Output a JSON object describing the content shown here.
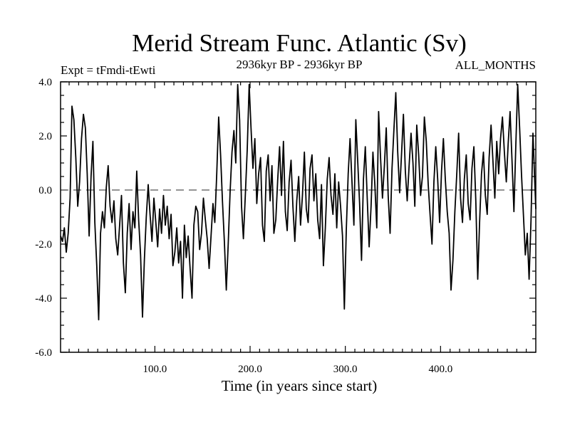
{
  "chart_data": {
    "type": "line",
    "title": "Merid Stream Func. Atlantic (Sv)",
    "subtitle_left": "Expt = tFmdi-tEwti",
    "subtitle_center": "2936kyr BP - 2936kyr BP",
    "subtitle_right": "ALL_MONTHS",
    "xlabel": "Time (in years since start)",
    "ylabel": "",
    "xlim": [
      1,
      500
    ],
    "ylim": [
      -6,
      4
    ],
    "x_ticks": [
      100,
      200,
      300,
      400
    ],
    "x_tick_labels": [
      "100.0",
      "200.0",
      "300.0",
      "400.0"
    ],
    "y_ticks": [
      -6,
      -4,
      -2,
      0,
      2,
      4
    ],
    "y_tick_labels": [
      "-6.0",
      "-4.0",
      "-2.0",
      "0.0",
      "2.0",
      "4.0"
    ],
    "reference_line": 0,
    "grid": false,
    "series": [
      {
        "name": "Merid Stream Func. Atlantic",
        "points": [
          [
            1,
            -1.7
          ],
          [
            3,
            -1.9
          ],
          [
            5,
            -1.4
          ],
          [
            7,
            -2.3
          ],
          [
            9,
            -1.6
          ],
          [
            11,
            -0.3
          ],
          [
            13,
            3.1
          ],
          [
            15,
            2.6
          ],
          [
            17,
            1.2
          ],
          [
            19,
            -0.6
          ],
          [
            21,
            0.3
          ],
          [
            23,
            1.9
          ],
          [
            25,
            2.8
          ],
          [
            27,
            2.3
          ],
          [
            29,
            0.6
          ],
          [
            31,
            -1.7
          ],
          [
            33,
            0.5
          ],
          [
            35,
            1.8
          ],
          [
            37,
            -1.2
          ],
          [
            39,
            -2.8
          ],
          [
            41,
            -4.8
          ],
          [
            43,
            -1.6
          ],
          [
            45,
            -0.8
          ],
          [
            47,
            -1.4
          ],
          [
            49,
            0.1
          ],
          [
            51,
            0.9
          ],
          [
            53,
            -0.6
          ],
          [
            55,
            -1.2
          ],
          [
            57,
            -0.4
          ],
          [
            59,
            -1.8
          ],
          [
            61,
            -2.4
          ],
          [
            63,
            -1.3
          ],
          [
            65,
            -0.2
          ],
          [
            67,
            -2.7
          ],
          [
            69,
            -3.8
          ],
          [
            71,
            -1.6
          ],
          [
            73,
            -0.5
          ],
          [
            75,
            -2.2
          ],
          [
            77,
            -0.8
          ],
          [
            79,
            -1.4
          ],
          [
            81,
            0.7
          ],
          [
            83,
            -1.1
          ],
          [
            85,
            -2.4
          ],
          [
            87,
            -4.7
          ],
          [
            89,
            -2.6
          ],
          [
            91,
            -1.0
          ],
          [
            93,
            0.2
          ],
          [
            95,
            -0.9
          ],
          [
            97,
            -1.9
          ],
          [
            99,
            -0.3
          ],
          [
            101,
            -1.2
          ],
          [
            103,
            -2.1
          ],
          [
            105,
            -0.7
          ],
          [
            107,
            -1.6
          ],
          [
            109,
            -0.2
          ],
          [
            111,
            -1.3
          ],
          [
            113,
            -0.6
          ],
          [
            115,
            -1.8
          ],
          [
            117,
            -0.9
          ],
          [
            119,
            -2.8
          ],
          [
            121,
            -2.3
          ],
          [
            123,
            -1.4
          ],
          [
            125,
            -2.7
          ],
          [
            127,
            -1.9
          ],
          [
            129,
            -4.0
          ],
          [
            131,
            -1.3
          ],
          [
            133,
            -2.5
          ],
          [
            135,
            -1.7
          ],
          [
            137,
            -2.9
          ],
          [
            139,
            -4.0
          ],
          [
            141,
            -1.3
          ],
          [
            143,
            -0.6
          ],
          [
            145,
            -0.8
          ],
          [
            147,
            -2.2
          ],
          [
            149,
            -1.6
          ],
          [
            151,
            -0.3
          ],
          [
            153,
            -1.1
          ],
          [
            155,
            -1.8
          ],
          [
            157,
            -2.9
          ],
          [
            159,
            -1.7
          ],
          [
            161,
            -0.5
          ],
          [
            163,
            -1.2
          ],
          [
            165,
            0.6
          ],
          [
            167,
            2.7
          ],
          [
            169,
            1.3
          ],
          [
            171,
            -0.4
          ],
          [
            173,
            -1.9
          ],
          [
            175,
            -3.7
          ],
          [
            177,
            -2.0
          ],
          [
            179,
            -0.1
          ],
          [
            181,
            1.4
          ],
          [
            183,
            2.2
          ],
          [
            185,
            1.0
          ],
          [
            187,
            3.9
          ],
          [
            189,
            2.6
          ],
          [
            191,
            -0.6
          ],
          [
            193,
            -1.8
          ],
          [
            195,
            -0.2
          ],
          [
            197,
            1.5
          ],
          [
            199,
            3.9
          ],
          [
            201,
            2.3
          ],
          [
            203,
            0.8
          ],
          [
            205,
            1.9
          ],
          [
            207,
            -0.5
          ],
          [
            209,
            0.6
          ],
          [
            211,
            1.2
          ],
          [
            213,
            -1.3
          ],
          [
            215,
            -1.9
          ],
          [
            217,
            0.7
          ],
          [
            219,
            1.3
          ],
          [
            221,
            -0.4
          ],
          [
            223,
            0.9
          ],
          [
            225,
            -1.6
          ],
          [
            227,
            -1.1
          ],
          [
            229,
            0.4
          ],
          [
            231,
            1.6
          ],
          [
            233,
            -0.2
          ],
          [
            235,
            1.8
          ],
          [
            237,
            -0.8
          ],
          [
            239,
            -1.5
          ],
          [
            241,
            0.3
          ],
          [
            243,
            1.1
          ],
          [
            245,
            -0.6
          ],
          [
            247,
            -1.9
          ],
          [
            249,
            -0.4
          ],
          [
            251,
            0.5
          ],
          [
            253,
            -1.3
          ],
          [
            255,
            -0.2
          ],
          [
            257,
            1.4
          ],
          [
            259,
            -0.7
          ],
          [
            261,
            -1.2
          ],
          [
            263,
            0.8
          ],
          [
            265,
            1.3
          ],
          [
            267,
            -0.4
          ],
          [
            269,
            0.6
          ],
          [
            271,
            -1.1
          ],
          [
            273,
            -1.8
          ],
          [
            275,
            0.2
          ],
          [
            277,
            -2.8
          ],
          [
            279,
            -1.4
          ],
          [
            281,
            0.4
          ],
          [
            283,
            1.2
          ],
          [
            285,
            -0.2
          ],
          [
            287,
            -0.9
          ],
          [
            289,
            0.6
          ],
          [
            291,
            -1.4
          ],
          [
            293,
            0.3
          ],
          [
            295,
            -0.6
          ],
          [
            297,
            -1.7
          ],
          [
            299,
            -4.4
          ],
          [
            301,
            -1.5
          ],
          [
            303,
            0.6
          ],
          [
            305,
            1.9
          ],
          [
            307,
            0.3
          ],
          [
            309,
            -1.3
          ],
          [
            311,
            2.6
          ],
          [
            313,
            1.1
          ],
          [
            315,
            -0.5
          ],
          [
            317,
            -2.6
          ],
          [
            319,
            0.4
          ],
          [
            321,
            1.6
          ],
          [
            323,
            -0.3
          ],
          [
            325,
            -2.1
          ],
          [
            327,
            -0.6
          ],
          [
            329,
            1.4
          ],
          [
            331,
            0.2
          ],
          [
            333,
            -1.4
          ],
          [
            335,
            2.9
          ],
          [
            337,
            1.2
          ],
          [
            339,
            -0.3
          ],
          [
            341,
            0.9
          ],
          [
            343,
            2.3
          ],
          [
            345,
            -0.2
          ],
          [
            347,
            -1.6
          ],
          [
            349,
            0.8
          ],
          [
            351,
            2.2
          ],
          [
            353,
            3.6
          ],
          [
            355,
            1.4
          ],
          [
            357,
            -0.1
          ],
          [
            359,
            1.3
          ],
          [
            361,
            2.8
          ],
          [
            363,
            0.7
          ],
          [
            365,
            -0.4
          ],
          [
            367,
            0.9
          ],
          [
            369,
            2.1
          ],
          [
            371,
            1.0
          ],
          [
            373,
            -0.6
          ],
          [
            375,
            2.4
          ],
          [
            377,
            1.3
          ],
          [
            379,
            -0.2
          ],
          [
            381,
            0.5
          ],
          [
            383,
            2.7
          ],
          [
            385,
            1.8
          ],
          [
            387,
            0.2
          ],
          [
            389,
            -0.9
          ],
          [
            391,
            -2.0
          ],
          [
            393,
            0.3
          ],
          [
            395,
            1.6
          ],
          [
            397,
            0.4
          ],
          [
            399,
            -1.2
          ],
          [
            401,
            0.7
          ],
          [
            403,
            1.9
          ],
          [
            405,
            0.4
          ],
          [
            407,
            -0.8
          ],
          [
            409,
            -1.6
          ],
          [
            411,
            -3.7
          ],
          [
            413,
            -2.6
          ],
          [
            415,
            -0.8
          ],
          [
            417,
            0.6
          ],
          [
            419,
            2.1
          ],
          [
            421,
            -0.3
          ],
          [
            423,
            -1.2
          ],
          [
            425,
            0.4
          ],
          [
            427,
            1.3
          ],
          [
            429,
            -0.5
          ],
          [
            431,
            -1.1
          ],
          [
            433,
            0.8
          ],
          [
            435,
            1.6
          ],
          [
            437,
            -0.4
          ],
          [
            439,
            -3.3
          ],
          [
            441,
            -1.2
          ],
          [
            443,
            0.6
          ],
          [
            445,
            1.4
          ],
          [
            447,
            -0.2
          ],
          [
            449,
            -0.9
          ],
          [
            451,
            1.2
          ],
          [
            453,
            2.4
          ],
          [
            455,
            1.1
          ],
          [
            457,
            -0.3
          ],
          [
            459,
            1.8
          ],
          [
            461,
            0.6
          ],
          [
            463,
            1.9
          ],
          [
            465,
            2.7
          ],
          [
            467,
            1.4
          ],
          [
            469,
            0.3
          ],
          [
            471,
            1.7
          ],
          [
            473,
            2.9
          ],
          [
            475,
            1.1
          ],
          [
            477,
            -0.8
          ],
          [
            479,
            1.6
          ],
          [
            481,
            3.9
          ],
          [
            483,
            2.3
          ],
          [
            485,
            0.6
          ],
          [
            487,
            -0.9
          ],
          [
            489,
            -2.4
          ],
          [
            491,
            -1.6
          ],
          [
            493,
            -3.3
          ],
          [
            495,
            -1.1
          ],
          [
            497,
            2.1
          ],
          [
            499,
            0.2
          ],
          [
            500,
            -0.7
          ]
        ]
      }
    ]
  }
}
